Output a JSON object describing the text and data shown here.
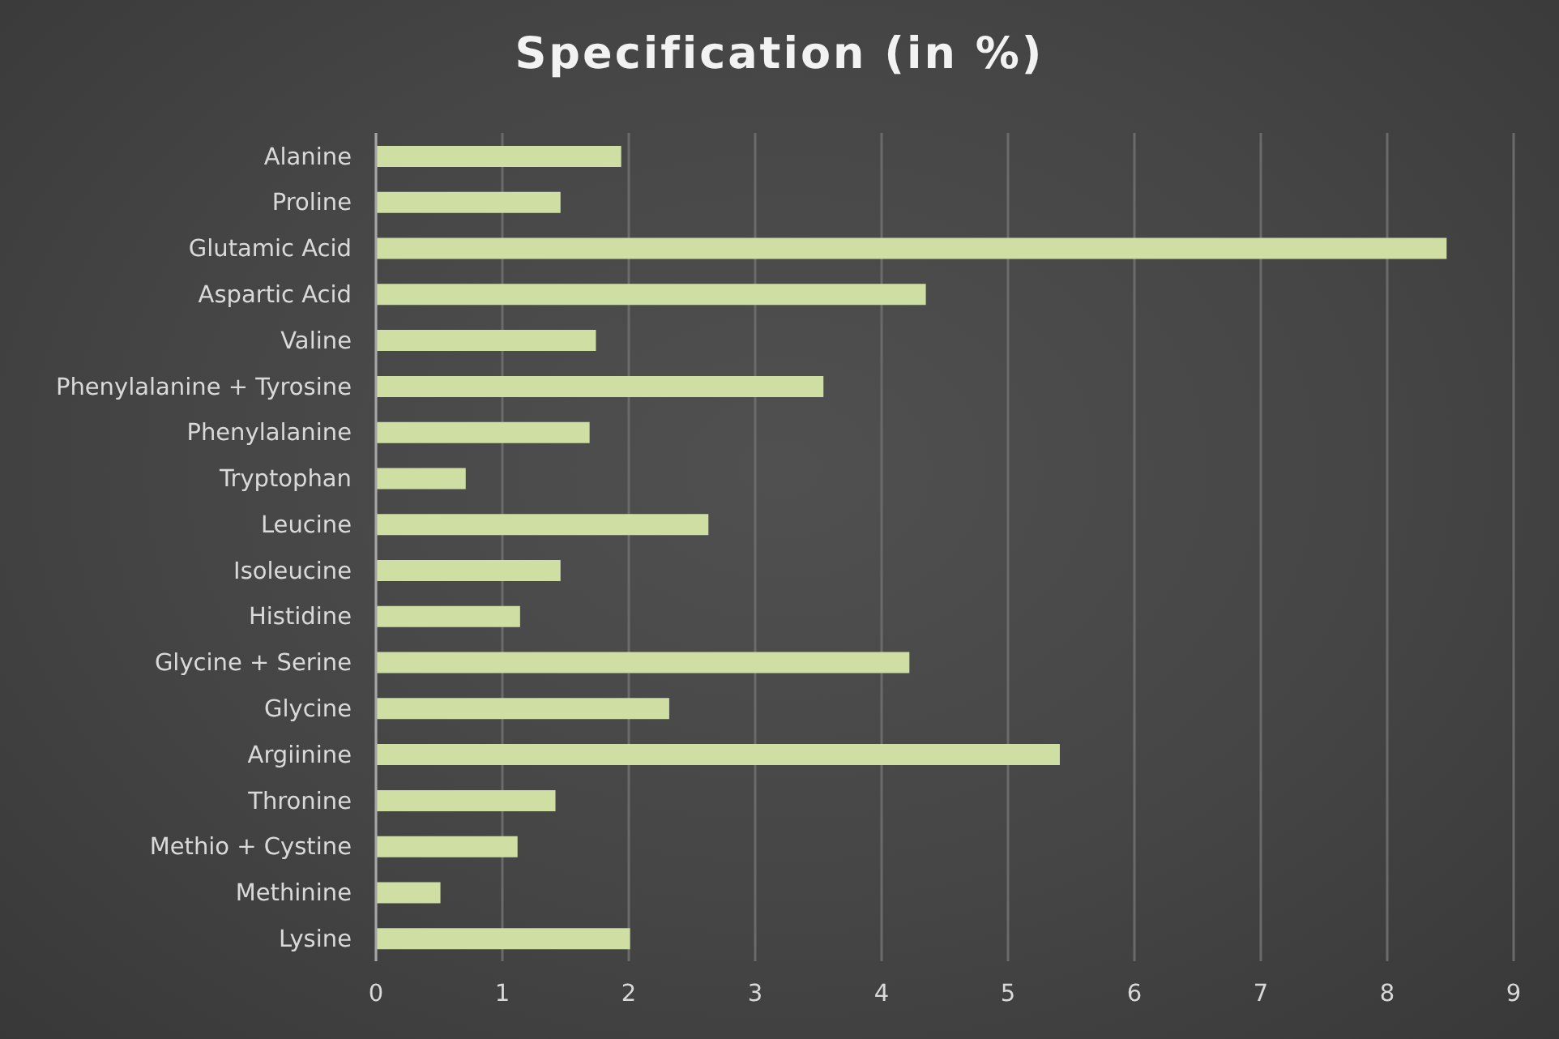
{
  "chart_data": {
    "type": "bar",
    "title": "Specification (in %)",
    "orientation": "horizontal",
    "categories": [
      "Alanine",
      "Proline",
      "Glutamic Acid",
      "Aspartic Acid",
      "Valine",
      "Phenylalanine + Tyrosine",
      "Phenylalanine",
      "Tryptophan",
      "Leucine",
      "Isoleucine",
      "Histidine",
      "Glycine + Serine",
      "Glycine",
      "Argiinine",
      "Thronine",
      "Methio + Cystine",
      "Methinine",
      "Lysine"
    ],
    "values": [
      1.94,
      1.46,
      8.47,
      4.35,
      1.74,
      3.54,
      1.69,
      0.71,
      2.63,
      1.46,
      1.14,
      4.22,
      2.32,
      5.41,
      1.42,
      1.12,
      0.51,
      2.01
    ],
    "color": "#cfdfa3",
    "xlim": [
      0,
      9
    ],
    "xticks": [
      0,
      1,
      2,
      3,
      4,
      5,
      6,
      7,
      8,
      9
    ],
    "grid": "x"
  }
}
